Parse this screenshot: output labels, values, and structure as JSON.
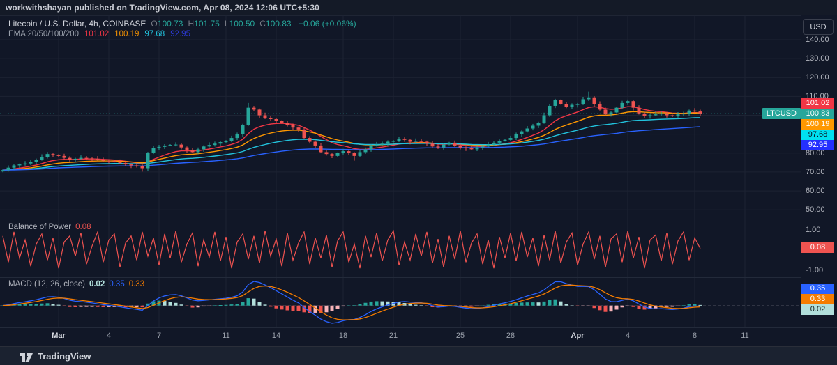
{
  "top_bar": {
    "text": "workwithshayan published on TradingView.com, Apr 08, 2024 12:06 UTC+5:30"
  },
  "bottom_bar": {
    "brand": "TradingView"
  },
  "price_scale": {
    "currency_button": "USD",
    "ticks": [
      "140.00",
      "130.00",
      "120.00",
      "110.00",
      "80.00",
      "70.00",
      "60.00",
      "50.00"
    ],
    "badges": [
      {
        "text": "101.02",
        "bg": "#f23645",
        "fg": "#ffffff"
      },
      {
        "text": "100.83",
        "bg": "#26a69a",
        "fg": "#ffffff"
      },
      {
        "text": "100.19",
        "bg": "#ff9800",
        "fg": "#ffffff"
      },
      {
        "text": "97.68",
        "bg": "#00e0f0",
        "fg": "#0c1220"
      },
      {
        "text": "92.95",
        "bg": "#2430ff",
        "fg": "#ffffff"
      }
    ],
    "symbol_tag": "LTCUSD",
    "bop_badge": {
      "text": "0.08",
      "bg": "#ef5350",
      "fg": "#ffffff"
    },
    "bop_ticks": [
      "1.00",
      "-1.00"
    ],
    "macd_badges": [
      {
        "text": "0.35",
        "bg": "#2962ff",
        "fg": "#ffffff"
      },
      {
        "text": "0.33",
        "bg": "#f57c00",
        "fg": "#ffffff"
      },
      {
        "text": "0.02",
        "bg": "#b2dfdb",
        "fg": "#14201f"
      }
    ]
  },
  "colors": {
    "up": "#26a69a",
    "down": "#ef5350",
    "ema20": "#f23645",
    "ema50": "#ff9800",
    "ema100": "#22c3dd",
    "ema200": "#2962ff",
    "bop_line": "#ef5350",
    "macd_line": "#2962ff",
    "signal_line": "#f57c00",
    "hist_up": "#26a69a",
    "hist_up_weak": "#b2dfdb",
    "hist_down": "#ef5350",
    "hist_down_weak": "#f8b4b9",
    "grid": "#1d2333",
    "price_line": "#26a69a"
  },
  "chart_data": {
    "type": "candlestick",
    "title": "Litecoin / U.S. Dollar, 4h, COINBASE",
    "symbol_line": "Litecoin / U.S. Dollar, 4h, COINBASE",
    "ohlc": [
      {
        "k": "O",
        "v": "100.73"
      },
      {
        "k": "H",
        "v": "101.75"
      },
      {
        "k": "L",
        "v": "100.50"
      },
      {
        "k": "C",
        "v": "100.83"
      }
    ],
    "change": "+0.06 (+0.06%)",
    "ema_label": "EMA 20/50/100/200",
    "ema_values": [
      {
        "v": "101.02",
        "c": "#f23645"
      },
      {
        "v": "100.19",
        "c": "#ff9800"
      },
      {
        "v": "97.68",
        "c": "#22c3dd"
      },
      {
        "v": "92.95",
        "c": "#2c3bdd"
      }
    ],
    "price_axis_range": [
      50,
      140
    ],
    "time_axis": [
      "Mar",
      "4",
      "7",
      "11",
      "14",
      "18",
      "21",
      "25",
      "28",
      "Apr",
      "4",
      "8",
      "11"
    ],
    "closes": [
      71,
      72.3,
      73.5,
      74,
      74.5,
      75.5,
      76.5,
      78,
      79.5,
      79,
      78.5,
      77.5,
      76.5,
      77,
      77.5,
      77.2,
      77,
      76.5,
      76,
      75.8,
      75.5,
      74.8,
      74,
      73.5,
      73,
      72,
      80,
      82.5,
      83.3,
      84,
      84.3,
      84.5,
      83,
      81.5,
      80.5,
      82,
      83.5,
      84.3,
      85,
      85.8,
      86.5,
      88,
      90,
      95,
      104,
      103,
      100,
      98.5,
      98,
      97,
      96,
      94.8,
      93.5,
      92.5,
      88,
      86,
      84,
      80.5,
      79.5,
      78.5,
      80,
      81,
      80,
      78.5,
      80.5,
      82,
      84,
      84.5,
      85,
      86,
      86.5,
      87.5,
      87,
      86,
      86.5,
      86,
      85,
      83.5,
      83,
      84.5,
      85.5,
      84,
      83,
      82.5,
      82,
      83,
      83.5,
      84.5,
      85.5,
      86.5,
      87,
      88,
      90,
      91.5,
      93,
      94.5,
      96,
      100,
      105,
      108,
      106,
      104.5,
      105.5,
      106,
      108.5,
      109.5,
      106,
      103,
      100.5,
      101.5,
      104,
      106.5,
      107.5,
      104,
      101,
      99.5,
      100,
      100.5,
      101,
      100,
      99.5,
      100.5,
      101,
      102.5,
      102,
      100.83
    ],
    "extremes": {
      "25": {
        "low": 70.2
      },
      "44": {
        "high": 106.5
      },
      "63": {
        "low": 76.0
      },
      "105": {
        "high": 112.5
      }
    },
    "last_price": 100.83,
    "indicators": [
      {
        "name": "Balance of Power",
        "value": "0.08",
        "range": [
          1,
          -1
        ],
        "values": [
          0.7,
          -0.6,
          0.9,
          -0.4,
          0.5,
          -0.8,
          0.3,
          0.8,
          -0.5,
          0.6,
          -0.9,
          0.4,
          0.7,
          -0.3,
          0.85,
          -0.7,
          0.2,
          0.9,
          -0.6,
          0.5,
          0.8,
          -0.85,
          0.35,
          0.7,
          -0.5,
          0.9,
          -0.3,
          0.6,
          -0.75,
          0.8,
          -0.4,
          0.95,
          -0.6,
          0.3,
          0.85,
          -0.8,
          0.5,
          -0.35,
          0.9,
          -0.55,
          0.65,
          -0.9,
          0.4,
          0.8,
          -0.45,
          0.7,
          -0.65,
          0.95,
          -0.3,
          0.55,
          -0.8,
          0.85,
          -0.5,
          0.35,
          0.9,
          -0.7,
          0.6,
          -0.4,
          0.75,
          -0.85,
          0.45,
          0.9,
          -0.6,
          0.3,
          -0.9,
          0.7,
          -0.35,
          0.85,
          -0.55,
          0.5,
          0.95,
          -0.75,
          0.4,
          -0.5,
          0.8,
          -0.3,
          0.9,
          -0.65,
          0.55,
          -0.85,
          0.7,
          -0.45,
          0.95,
          -0.6,
          0.35,
          0.8,
          -0.7,
          0.5,
          -0.9,
          0.65,
          -0.4,
          0.85,
          -0.55,
          0.9,
          -0.35,
          0.6,
          -0.8,
          0.75,
          -0.5,
          0.95,
          -0.65,
          0.4,
          0.85,
          -0.75,
          0.3,
          0.9,
          -0.45,
          0.7,
          -0.85,
          0.55,
          0.8,
          -0.6,
          0.95,
          -0.4,
          0.65,
          -0.9,
          0.5,
          0.75,
          -0.55,
          0.85,
          -0.7,
          0.45,
          0.9,
          -0.5,
          0.6,
          0.08
        ]
      },
      {
        "name": "MACD (12, 26, close)",
        "hist": "0.02",
        "macd": "0.35",
        "signal": "0.33"
      }
    ]
  }
}
